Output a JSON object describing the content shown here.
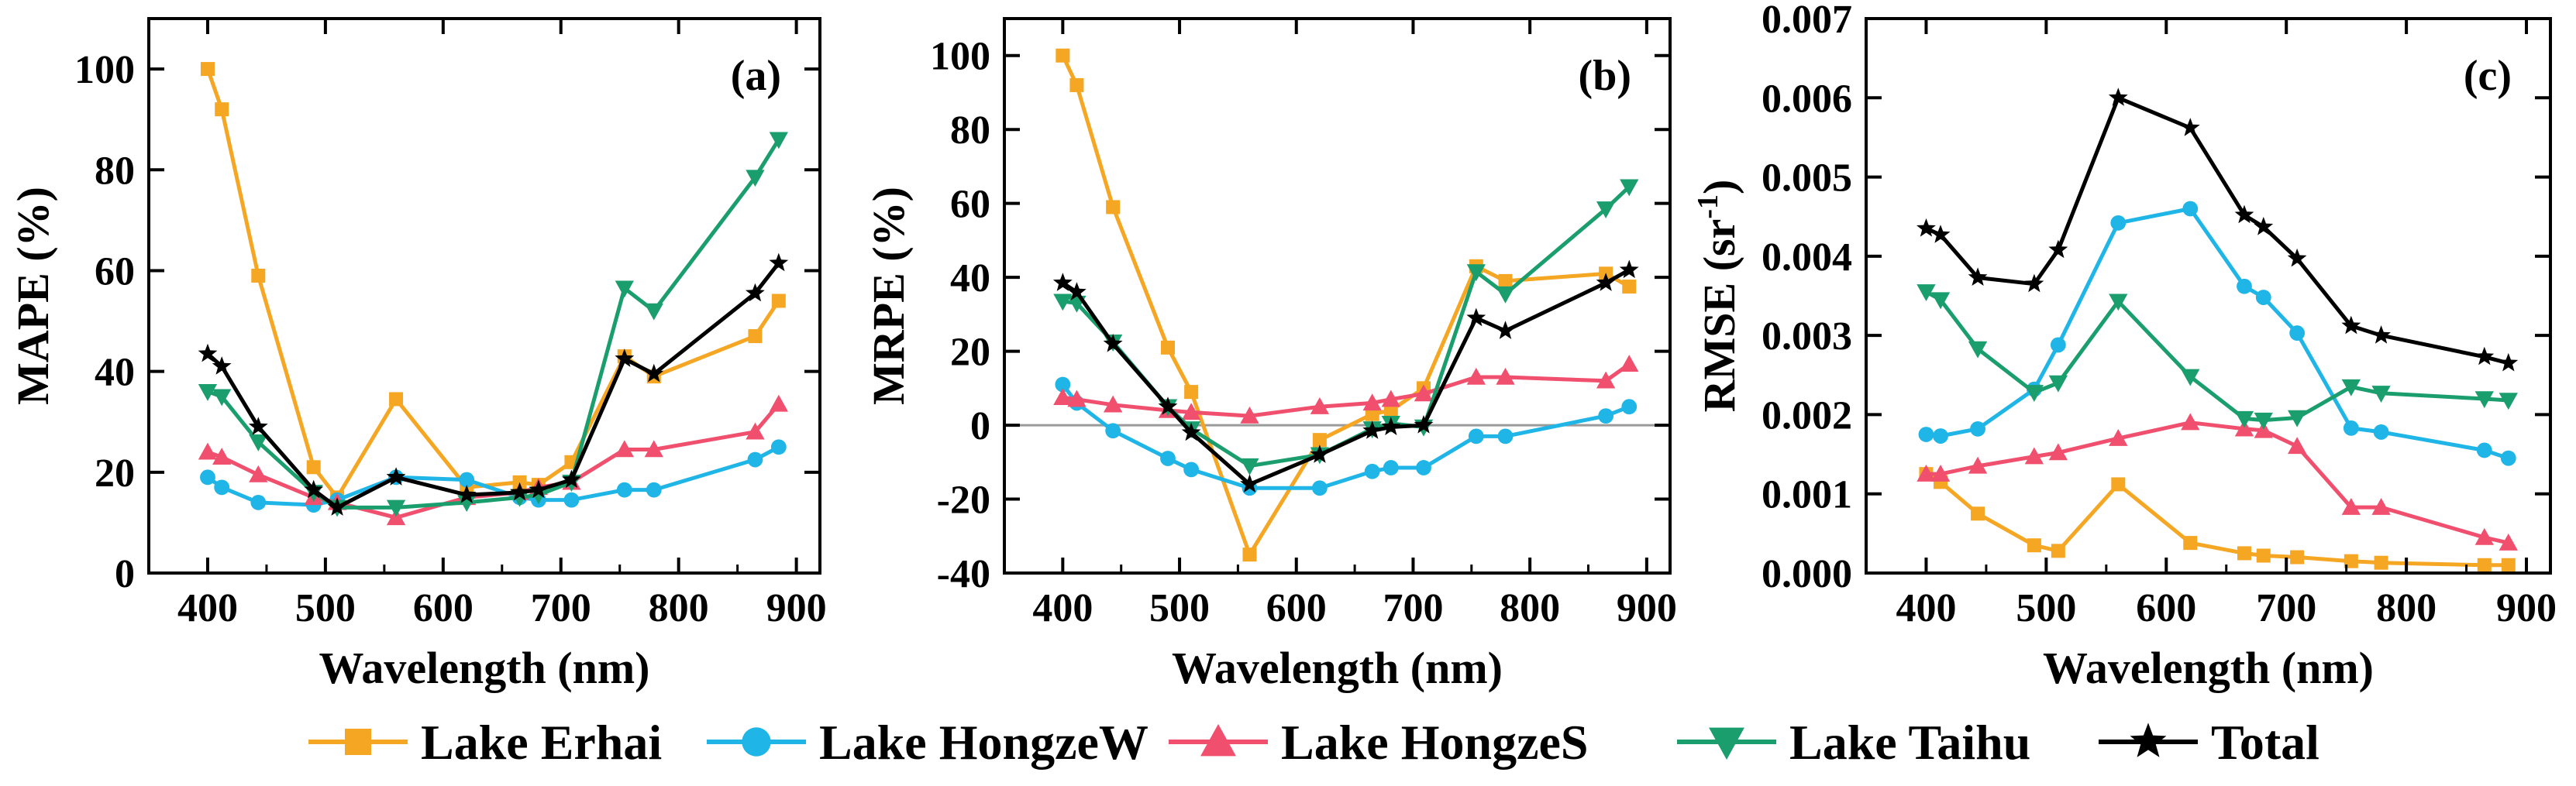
{
  "chart_data": [
    {
      "type": "line",
      "panel_label": "(a)",
      "xlabel": "Wavelength (nm)",
      "ylabel_main": "MAPE (%)",
      "xlim": [
        350,
        920
      ],
      "ylim": [
        0,
        110
      ],
      "xticks": [
        "400",
        "500",
        "600",
        "700",
        "800",
        "900"
      ],
      "yticks": [
        "0",
        "20",
        "40",
        "60",
        "80",
        "100"
      ],
      "zero_line": false,
      "series": [
        {
          "name": "Lake Erhai",
          "color": "#F5A623",
          "marker": "square",
          "x": [
            400,
            412,
            443,
            490,
            510,
            560,
            620,
            665,
            681,
            709,
            754,
            779,
            865,
            885
          ],
          "y": [
            100,
            92,
            59,
            21,
            15,
            34.5,
            17,
            18,
            17.5,
            22,
            43,
            39,
            47,
            54
          ]
        },
        {
          "name": "Lake HongzeW",
          "color": "#1FB5E6",
          "marker": "circle",
          "x": [
            400,
            412,
            443,
            490,
            510,
            560,
            620,
            665,
            681,
            709,
            754,
            779,
            865,
            885
          ],
          "y": [
            19,
            17,
            14,
            13.5,
            14.5,
            19,
            18.5,
            15,
            14.5,
            14.5,
            16.5,
            16.5,
            22.5,
            25
          ]
        },
        {
          "name": "Lake HongzeS",
          "color": "#F0506E",
          "marker": "triangle-up",
          "x": [
            400,
            412,
            443,
            490,
            510,
            560,
            620,
            665,
            681,
            709,
            754,
            779,
            865,
            885
          ],
          "y": [
            24,
            23,
            19.5,
            15,
            14,
            11,
            15,
            16,
            17,
            18,
            24.5,
            24.5,
            28,
            33.5
          ]
        },
        {
          "name": "Lake Taihu",
          "color": "#1A9E6E",
          "marker": "triangle-down",
          "x": [
            400,
            412,
            443,
            490,
            510,
            560,
            620,
            665,
            681,
            709,
            754,
            779,
            865,
            885
          ],
          "y": [
            36,
            35,
            26,
            16,
            13,
            13,
            14,
            15,
            15.5,
            18,
            56.5,
            52,
            78.5,
            86
          ]
        },
        {
          "name": "Total",
          "color": "#000000",
          "marker": "star",
          "x": [
            400,
            412,
            443,
            490,
            510,
            560,
            620,
            665,
            681,
            709,
            754,
            779,
            865,
            885
          ],
          "y": [
            43.5,
            41,
            29,
            16.5,
            13,
            19,
            15.5,
            16,
            16.5,
            18.5,
            42.5,
            39.5,
            55.5,
            61.5
          ]
        }
      ]
    },
    {
      "type": "line",
      "panel_label": "(b)",
      "xlabel": "Wavelength (nm)",
      "ylabel_main": "MRPE (%)",
      "xlim": [
        350,
        920
      ],
      "ylim": [
        -40,
        110
      ],
      "xticks": [
        "400",
        "500",
        "600",
        "700",
        "800",
        "900"
      ],
      "yticks": [
        "-40",
        "-20",
        "0",
        "20",
        "40",
        "60",
        "80",
        "100"
      ],
      "zero_line": true,
      "series": [
        {
          "name": "Lake Erhai",
          "color": "#F5A623",
          "marker": "square",
          "x": [
            400,
            412,
            443,
            490,
            510,
            560,
            620,
            665,
            681,
            709,
            754,
            779,
            865,
            885
          ],
          "y": [
            100,
            92,
            59,
            21,
            9,
            -35,
            -4,
            3,
            4,
            10,
            43,
            39,
            41,
            37.5
          ]
        },
        {
          "name": "Lake HongzeW",
          "color": "#1FB5E6",
          "marker": "circle",
          "x": [
            400,
            412,
            443,
            490,
            510,
            560,
            620,
            665,
            681,
            709,
            754,
            779,
            865,
            885
          ],
          "y": [
            11,
            6,
            -1.5,
            -9,
            -12,
            -17,
            -17,
            -12.5,
            -11.5,
            -11.5,
            -3,
            -3,
            2.5,
            5
          ]
        },
        {
          "name": "Lake HongzeS",
          "color": "#F0506E",
          "marker": "triangle-up",
          "x": [
            400,
            412,
            443,
            490,
            510,
            560,
            620,
            665,
            681,
            709,
            754,
            779,
            865,
            885
          ],
          "y": [
            7.5,
            7,
            5.5,
            4,
            3.5,
            2.5,
            5,
            6,
            7,
            8.5,
            13,
            13,
            12,
            16.5
          ]
        },
        {
          "name": "Lake Taihu",
          "color": "#1A9E6E",
          "marker": "triangle-down",
          "x": [
            400,
            412,
            443,
            490,
            510,
            560,
            620,
            665,
            681,
            709,
            754,
            779,
            865,
            885
          ],
          "y": [
            33.5,
            33,
            22.5,
            5,
            -1,
            -11,
            -8,
            -1,
            0.5,
            -0.5,
            41.5,
            35.5,
            58.5,
            64.5
          ]
        },
        {
          "name": "Total",
          "color": "#000000",
          "marker": "star",
          "x": [
            400,
            412,
            443,
            490,
            510,
            560,
            620,
            665,
            681,
            709,
            754,
            779,
            865,
            885
          ],
          "y": [
            38.5,
            36,
            22,
            5,
            -2,
            -16,
            -8,
            -1.5,
            -0.5,
            0,
            29,
            25.5,
            38.5,
            42
          ]
        }
      ]
    },
    {
      "type": "line",
      "panel_label": "(c)",
      "xlabel": "Wavelength (nm)",
      "ylabel_main": "RMSE (sr",
      "ylabel_sup": "-1",
      "ylabel_end": ")",
      "xlim": [
        350,
        920
      ],
      "ylim": [
        0,
        0.007
      ],
      "xticks": [
        "400",
        "500",
        "600",
        "700",
        "800",
        "900"
      ],
      "yticks": [
        "0.000",
        "0.001",
        "0.002",
        "0.003",
        "0.004",
        "0.005",
        "0.006",
        "0.007"
      ],
      "zero_line": false,
      "series": [
        {
          "name": "Lake Erhai",
          "color": "#F5A623",
          "marker": "square",
          "x": [
            400,
            412,
            443,
            490,
            510,
            560,
            620,
            665,
            681,
            709,
            754,
            779,
            865,
            885
          ],
          "y": [
            0.00125,
            0.00115,
            0.00075,
            0.00035,
            0.00028,
            0.00112,
            0.00038,
            0.00025,
            0.00022,
            0.0002,
            0.00015,
            0.00013,
            0.0001,
            0.0001
          ]
        },
        {
          "name": "Lake HongzeW",
          "color": "#1FB5E6",
          "marker": "circle",
          "x": [
            400,
            412,
            443,
            490,
            510,
            560,
            620,
            665,
            681,
            709,
            754,
            779,
            865,
            885
          ],
          "y": [
            0.00175,
            0.00173,
            0.00182,
            0.00232,
            0.00288,
            0.00442,
            0.0046,
            0.00362,
            0.00348,
            0.00303,
            0.00183,
            0.00178,
            0.00155,
            0.00145
          ]
        },
        {
          "name": "Lake HongzeS",
          "color": "#F0506E",
          "marker": "triangle-up",
          "x": [
            400,
            412,
            443,
            490,
            510,
            560,
            620,
            665,
            681,
            709,
            754,
            779,
            865,
            885
          ],
          "y": [
            0.00125,
            0.00125,
            0.00135,
            0.00147,
            0.00152,
            0.0017,
            0.0019,
            0.00182,
            0.0018,
            0.0016,
            0.00083,
            0.00083,
            0.00045,
            0.00038
          ]
        },
        {
          "name": "Lake Taihu",
          "color": "#1A9E6E",
          "marker": "triangle-down",
          "x": [
            400,
            412,
            443,
            490,
            510,
            560,
            620,
            665,
            681,
            709,
            754,
            779,
            865,
            885
          ],
          "y": [
            0.00355,
            0.00345,
            0.00283,
            0.00228,
            0.0024,
            0.00343,
            0.00248,
            0.00195,
            0.00193,
            0.00196,
            0.00235,
            0.00227,
            0.0022,
            0.00218
          ]
        },
        {
          "name": "Total",
          "color": "#000000",
          "marker": "star",
          "x": [
            400,
            412,
            443,
            490,
            510,
            560,
            620,
            665,
            681,
            709,
            754,
            779,
            865,
            885
          ],
          "y": [
            0.00435,
            0.00427,
            0.00373,
            0.00365,
            0.00408,
            0.006,
            0.00562,
            0.00452,
            0.00437,
            0.00397,
            0.00312,
            0.003,
            0.00273,
            0.00265
          ]
        }
      ]
    }
  ],
  "legend": {
    "placement": "bottom-center",
    "items": [
      {
        "label": "Lake Erhai",
        "color": "#F5A623",
        "marker": "square"
      },
      {
        "label": "Lake HongzeW",
        "color": "#1FB5E6",
        "marker": "circle"
      },
      {
        "label": "Lake HongzeS",
        "color": "#F0506E",
        "marker": "triangle-up"
      },
      {
        "label": "Lake Taihu",
        "color": "#1A9E6E",
        "marker": "triangle-down"
      },
      {
        "label": "Total",
        "color": "#000000",
        "marker": "star"
      }
    ]
  }
}
